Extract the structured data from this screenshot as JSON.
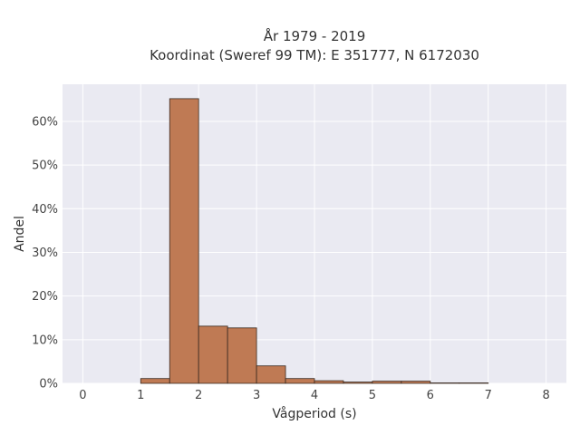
{
  "chart_data": {
    "type": "bar",
    "title_line1": "År 1979 - 2019",
    "title_line2": "Koordinat (Sweref 99 TM): E 351777, N 6172030",
    "xlabel": "Vågperiod (s)",
    "ylabel": "Andel",
    "xlim": [
      -0.35,
      8.35
    ],
    "ylim": [
      0,
      0.685
    ],
    "x_ticks": [
      0,
      1,
      2,
      3,
      4,
      5,
      6,
      7,
      8
    ],
    "y_ticks": [
      0,
      0.1,
      0.2,
      0.3,
      0.4,
      0.5,
      0.6
    ],
    "y_tick_labels": [
      "0%",
      "10%",
      "20%",
      "30%",
      "40%",
      "50%",
      "60%"
    ],
    "bin_width": 0.5,
    "bins": [
      {
        "start": 1.0,
        "value": 0.011
      },
      {
        "start": 1.5,
        "value": 0.652
      },
      {
        "start": 2.0,
        "value": 0.131
      },
      {
        "start": 2.5,
        "value": 0.127
      },
      {
        "start": 3.0,
        "value": 0.04
      },
      {
        "start": 3.5,
        "value": 0.011
      },
      {
        "start": 4.0,
        "value": 0.006
      },
      {
        "start": 4.5,
        "value": 0.003
      },
      {
        "start": 5.0,
        "value": 0.005
      },
      {
        "start": 5.5,
        "value": 0.005
      },
      {
        "start": 6.0,
        "value": 0.001
      },
      {
        "start": 6.5,
        "value": 0.001
      }
    ],
    "grid": true,
    "colors": {
      "bar_fill": "#bf7a54",
      "bar_edge": "#3a2a20",
      "plot_bg": "#eaeaf2",
      "grid": "#ffffff"
    }
  }
}
